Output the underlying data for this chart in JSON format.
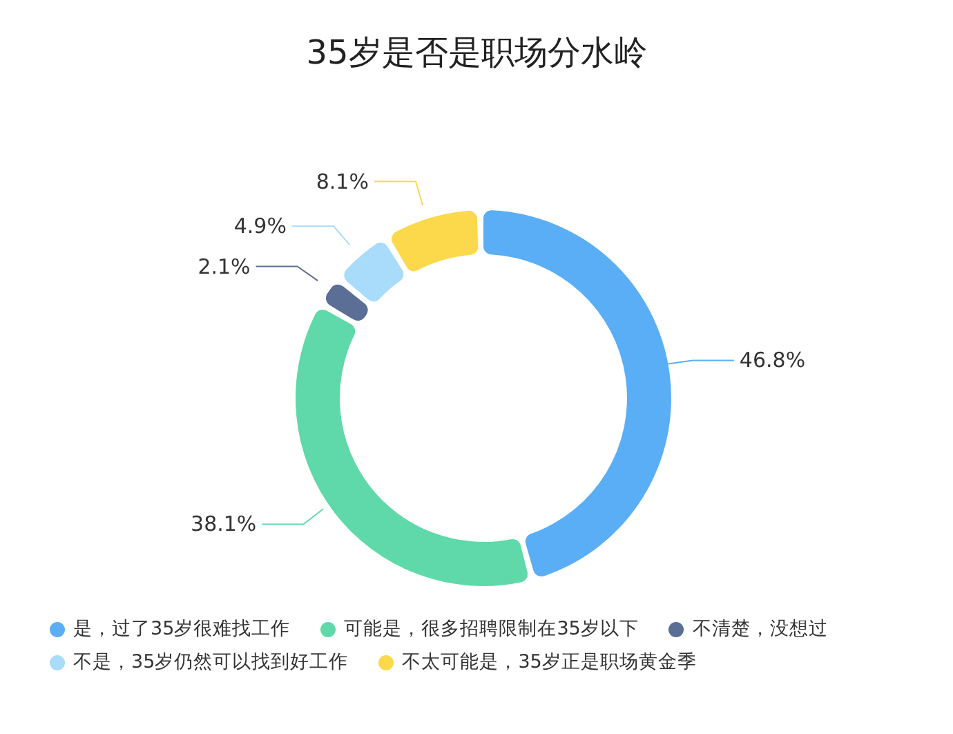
{
  "chart_data": {
    "type": "donut",
    "title": "35岁是否是职场分水岭",
    "categories": [
      "是，过了35岁很难找工作",
      "可能是，很多招聘限制在35岁以下",
      "不清楚，没想过",
      "不是，35岁仍然可以找到好工作",
      "不太可能是，35岁正是职场黄金季"
    ],
    "values": [
      46.8,
      38.1,
      2.1,
      4.9,
      8.1
    ],
    "value_labels": [
      "46.8%",
      "38.1%",
      "2.1%",
      "4.9%",
      "8.1%"
    ],
    "colors": [
      "#5aaef5",
      "#5fd9a9",
      "#5a6e96",
      "#a9dcfa",
      "#fcd94a"
    ],
    "legend": "bottom"
  }
}
